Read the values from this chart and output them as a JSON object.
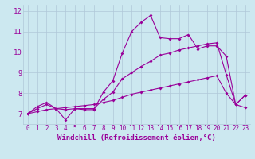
{
  "xlabel": "Windchill (Refroidissement éolien,°C)",
  "background_color": "#cce8f0",
  "grid_color": "#b0c8d8",
  "line_color": "#990099",
  "xlim": [
    -0.5,
    23.5
  ],
  "ylim": [
    6.5,
    12.3
  ],
  "xticks": [
    0,
    1,
    2,
    3,
    4,
    5,
    6,
    7,
    8,
    9,
    10,
    11,
    12,
    13,
    14,
    15,
    16,
    17,
    18,
    19,
    20,
    21,
    22,
    23
  ],
  "yticks": [
    7,
    8,
    9,
    10,
    11,
    12
  ],
  "line1_x": [
    0,
    1,
    2,
    3,
    4,
    5,
    6,
    7,
    8,
    9,
    10,
    11,
    12,
    13,
    14,
    15,
    16,
    17,
    18,
    19,
    20,
    21,
    22,
    23
  ],
  "line1_y": [
    7.0,
    7.35,
    7.55,
    7.25,
    6.7,
    7.25,
    7.2,
    7.2,
    8.05,
    8.6,
    9.95,
    11.0,
    11.45,
    11.78,
    10.7,
    10.65,
    10.65,
    10.85,
    10.15,
    10.3,
    10.3,
    9.8,
    7.45,
    7.3
  ],
  "line2_x": [
    0,
    1,
    2,
    3,
    4,
    5,
    6,
    7,
    8,
    9,
    10,
    11,
    12,
    13,
    14,
    15,
    16,
    17,
    18,
    19,
    20,
    21,
    22,
    23
  ],
  "line2_y": [
    7.0,
    7.25,
    7.45,
    7.25,
    7.2,
    7.25,
    7.25,
    7.25,
    7.7,
    8.05,
    8.7,
    9.0,
    9.3,
    9.55,
    9.85,
    9.95,
    10.1,
    10.2,
    10.3,
    10.4,
    10.45,
    8.9,
    7.45,
    7.9
  ],
  "line3_x": [
    0,
    1,
    2,
    3,
    4,
    5,
    6,
    7,
    8,
    9,
    10,
    11,
    12,
    13,
    14,
    15,
    16,
    17,
    18,
    19,
    20,
    21,
    22,
    23
  ],
  "line3_y": [
    7.0,
    7.1,
    7.2,
    7.25,
    7.3,
    7.35,
    7.4,
    7.45,
    7.55,
    7.65,
    7.8,
    7.95,
    8.05,
    8.15,
    8.25,
    8.35,
    8.45,
    8.55,
    8.65,
    8.75,
    8.85,
    8.0,
    7.45,
    7.9
  ],
  "marker": "D",
  "markersize": 2.0,
  "linewidth": 0.8,
  "xlabel_fontsize": 6.5,
  "tick_fontsize": 5.5
}
